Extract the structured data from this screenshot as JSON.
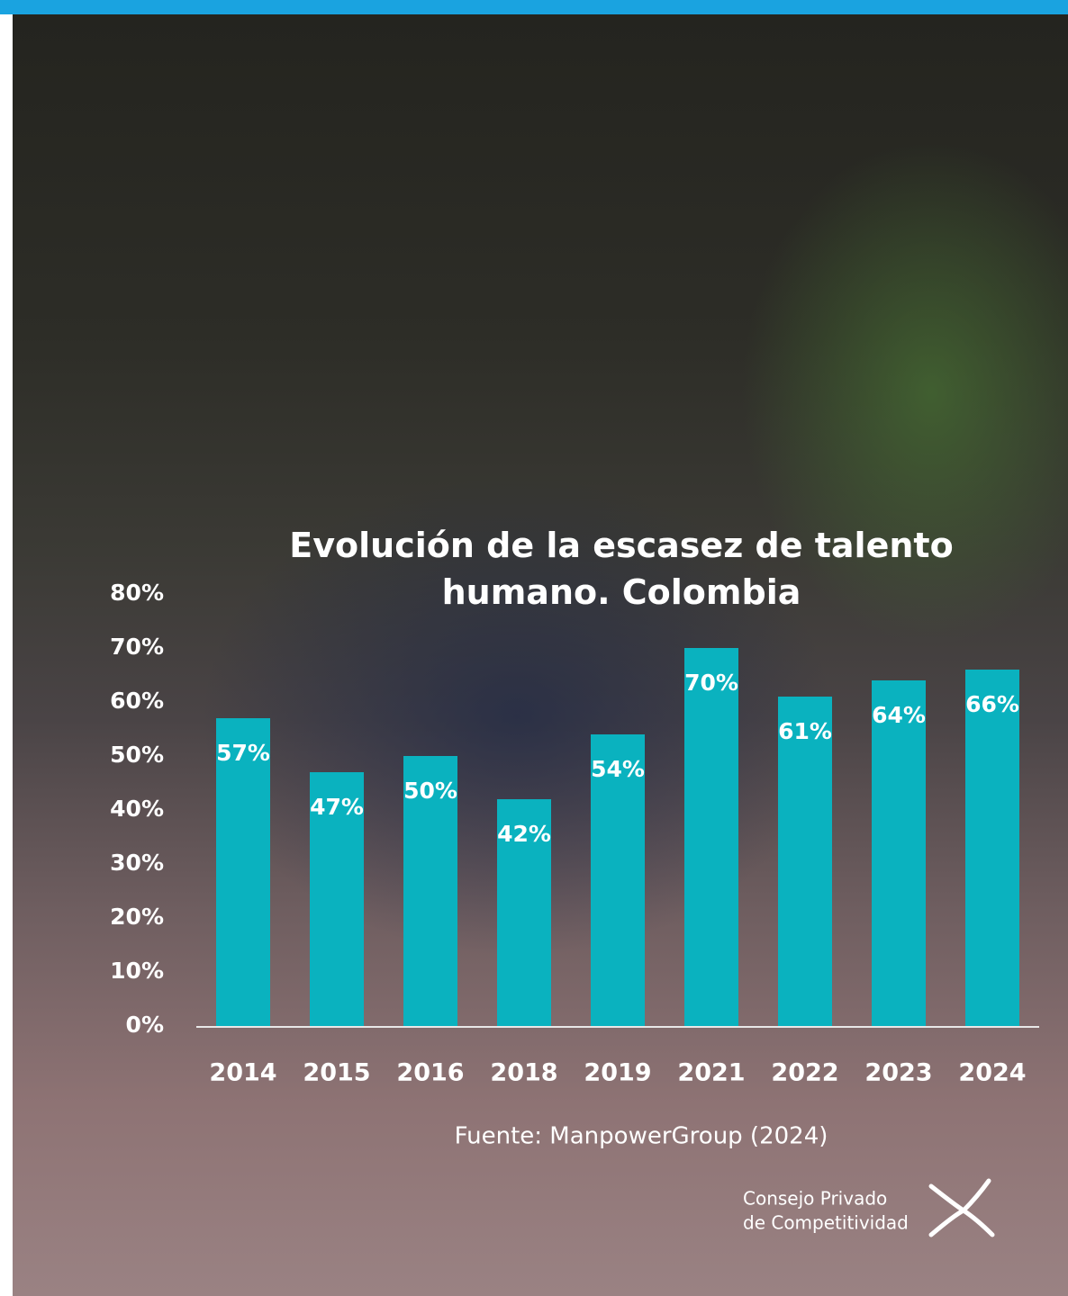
{
  "chart_data": {
    "type": "bar",
    "title": "Evolución de la escasez de talento humano. Colombia",
    "categories": [
      "2014",
      "2015",
      "2016",
      "2018",
      "2019",
      "2021",
      "2022",
      "2023",
      "2024"
    ],
    "values": [
      57,
      47,
      50,
      42,
      54,
      70,
      61,
      64,
      66
    ],
    "value_labels": [
      "57%",
      "47%",
      "50%",
      "42%",
      "54%",
      "70%",
      "61%",
      "64%",
      "66%"
    ],
    "color": "#0ab2bf",
    "ylim": [
      0,
      80
    ],
    "yticks": [
      {
        "value": 0,
        "label": "0%"
      },
      {
        "value": 10,
        "label": "10%"
      },
      {
        "value": 20,
        "label": "20%"
      },
      {
        "value": 30,
        "label": "30%"
      },
      {
        "value": 40,
        "label": "40%"
      },
      {
        "value": 50,
        "label": "50%"
      },
      {
        "value": 60,
        "label": "60%"
      },
      {
        "value": 70,
        "label": "70%"
      },
      {
        "value": 80,
        "label": "80%"
      }
    ],
    "grid": false,
    "source": "Fuente: ManpowerGroup (2024)"
  },
  "logo": {
    "line1": "Consejo Privado",
    "line2": "de Competitividad"
  }
}
